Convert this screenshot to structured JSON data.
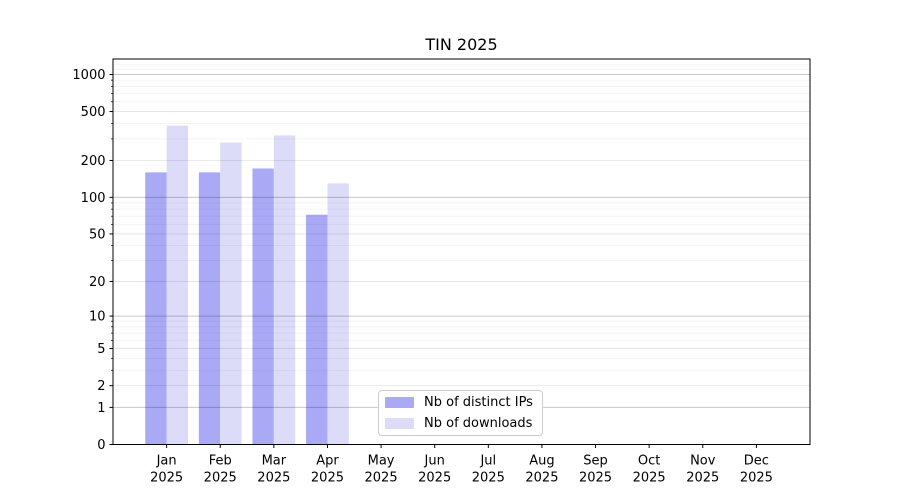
{
  "title": "TIN 2025",
  "chart_data": {
    "type": "bar",
    "title": "TIN 2025",
    "categories": [
      "Jan 2025",
      "Feb 2025",
      "Mar 2025",
      "Apr 2025",
      "May 2025",
      "Jun 2025",
      "Jul 2025",
      "Aug 2025",
      "Sep 2025",
      "Oct 2025",
      "Nov 2025",
      "Dec 2025"
    ],
    "series": [
      {
        "name": "Nb of distinct IPs",
        "color": "#a9a9f6",
        "values": [
          160,
          160,
          172,
          72,
          0,
          0,
          0,
          0,
          0,
          0,
          0,
          0
        ]
      },
      {
        "name": "Nb of downloads",
        "color": "#dcdcf9",
        "values": [
          385,
          280,
          320,
          130,
          0,
          0,
          0,
          0,
          0,
          0,
          0,
          0
        ]
      }
    ],
    "yticks": [
      0,
      1,
      2,
      5,
      10,
      20,
      50,
      100,
      200,
      500,
      1000
    ],
    "yscale": "quasi-log: position = log10(value+1)",
    "ylim": [
      0,
      1250
    ],
    "xlabel": "",
    "ylabel": "",
    "grid": true,
    "gridlines_over_bars": true,
    "legend_position": "inside plot, lower center-left",
    "colors": {
      "axis": "#000000",
      "grid_major_power10": "#c5c5c5",
      "grid_labeled": "#e2e2e2",
      "grid_minor": "#f0f0f0",
      "background": "#ffffff",
      "legend_border": "#cccccc"
    }
  }
}
